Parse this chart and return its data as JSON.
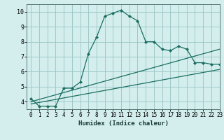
{
  "xlabel": "Humidex (Indice chaleur)",
  "bg_color": "#d4eeee",
  "grid_color": "#a0c8c8",
  "line_color": "#1a6e60",
  "xlim": [
    -0.5,
    23
  ],
  "ylim": [
    3.5,
    10.5
  ],
  "yticks": [
    4,
    5,
    6,
    7,
    8,
    9,
    10
  ],
  "xticks": [
    0,
    1,
    2,
    3,
    4,
    5,
    6,
    7,
    8,
    9,
    10,
    11,
    12,
    13,
    14,
    15,
    16,
    17,
    18,
    19,
    20,
    21,
    22,
    23
  ],
  "curve1_x": [
    0,
    1,
    2,
    3,
    4,
    5,
    6,
    7,
    8,
    9,
    10,
    11,
    12,
    13,
    14,
    15,
    16,
    17,
    18,
    19,
    20,
    21,
    22,
    23
  ],
  "curve1_y": [
    4.2,
    3.7,
    3.7,
    3.7,
    4.9,
    4.9,
    5.3,
    7.2,
    8.3,
    9.7,
    9.9,
    10.1,
    9.7,
    9.4,
    8.0,
    8.0,
    7.5,
    7.4,
    7.7,
    7.5,
    6.6,
    6.6,
    6.5,
    6.5
  ],
  "curve2_x": [
    0,
    23
  ],
  "curve2_y": [
    4.0,
    7.5
  ],
  "curve3_x": [
    0,
    23
  ],
  "curve3_y": [
    3.85,
    6.15
  ]
}
